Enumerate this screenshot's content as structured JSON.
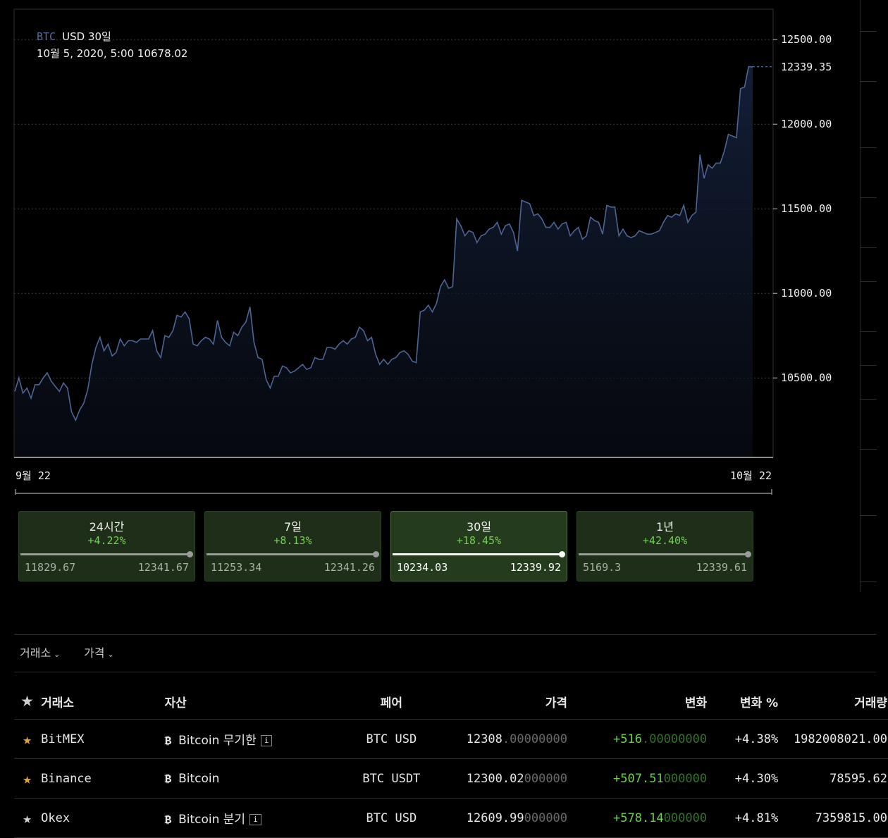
{
  "legend": {
    "symbol": "BTC",
    "pair_rest": "USD 30일",
    "tooltip": "10월 5, 2020, 5:00 10678.02"
  },
  "chart_data": {
    "type": "area",
    "x_labels": [
      "9월 22",
      "10월 22"
    ],
    "y_ticks": [
      "12500.00",
      "12000.00",
      "11500.00",
      "11000.00",
      "10500.00"
    ],
    "y_tick_values": [
      12500,
      12000,
      11500,
      11000,
      10500
    ],
    "ylim": [
      10030,
      12680
    ],
    "last_value_label": "12339.35",
    "last_value": 12339.35,
    "grid": true,
    "line_color": "#4d6494",
    "values": [
      10420,
      10500,
      10410,
      10440,
      10380,
      10460,
      10460,
      10500,
      10530,
      10480,
      10450,
      10420,
      10470,
      10440,
      10300,
      10250,
      10310,
      10350,
      10430,
      10580,
      10680,
      10740,
      10660,
      10700,
      10630,
      10650,
      10730,
      10690,
      10720,
      10720,
      10710,
      10730,
      10730,
      10730,
      10780,
      10660,
      10620,
      10750,
      10740,
      10780,
      10870,
      10860,
      10890,
      10850,
      10700,
      10690,
      10720,
      10740,
      10730,
      10700,
      10840,
      10740,
      10710,
      10690,
      10770,
      10750,
      10800,
      10830,
      10920,
      10710,
      10620,
      10610,
      10490,
      10440,
      10510,
      10510,
      10570,
      10560,
      10530,
      10540,
      10560,
      10580,
      10550,
      10560,
      10620,
      10610,
      10610,
      10680,
      10680,
      10670,
      10700,
      10720,
      10700,
      10730,
      10740,
      10800,
      10780,
      10720,
      10740,
      10640,
      10580,
      10610,
      10580,
      10610,
      10620,
      10650,
      10660,
      10640,
      10600,
      10590,
      10890,
      10900,
      10930,
      10890,
      10940,
      11040,
      11080,
      11030,
      11040,
      11440,
      11400,
      11340,
      11370,
      11360,
      11300,
      11340,
      11350,
      11380,
      11390,
      11420,
      11350,
      11400,
      11410,
      11360,
      11250,
      11550,
      11540,
      11530,
      11460,
      11470,
      11440,
      11390,
      11390,
      11420,
      11380,
      11410,
      11420,
      11340,
      11370,
      11390,
      11320,
      11340,
      11450,
      11430,
      11420,
      11350,
      11520,
      11510,
      11510,
      11340,
      11380,
      11340,
      11330,
      11340,
      11370,
      11360,
      11350,
      11350,
      11360,
      11370,
      11420,
      11460,
      11450,
      11470,
      11460,
      11520,
      11420,
      11460,
      11480,
      11820,
      11680,
      11760,
      11740,
      11770,
      11770,
      11840,
      11940,
      11930,
      11920,
      12210,
      12220,
      12340,
      12339.35
    ]
  },
  "ranges": [
    {
      "label": "24시간",
      "pct": "+4.22%",
      "low": "11829.67",
      "high": "12341.67",
      "active": false
    },
    {
      "label": "7일",
      "pct": "+8.13%",
      "low": "11253.34",
      "high": "12341.26",
      "active": false
    },
    {
      "label": "30일",
      "pct": "+18.45%",
      "low": "10234.03",
      "high": "12339.92",
      "active": true
    },
    {
      "label": "1년",
      "pct": "+42.40%",
      "low": "5169.3",
      "high": "12339.61",
      "active": false
    }
  ],
  "filters": {
    "exchange": "거래소",
    "price": "가격"
  },
  "table": {
    "headers": {
      "exchange": "거래소",
      "asset": "자산",
      "pair": "페어",
      "price": "가격",
      "change": "변화",
      "change_pct": "변화 %",
      "volume": "거래량"
    },
    "rows": [
      {
        "starred": true,
        "exchange": "BitMEX",
        "asset": "Bitcoin 무기한",
        "info": "i",
        "pair": "BTC USD",
        "price_main": "12308",
        "price_dim": ".00000000",
        "change_main": "+516",
        "change_dim": ".00000000",
        "change_pct": "+4.38%",
        "volume": "1982008021.00"
      },
      {
        "starred": true,
        "exchange": "Binance",
        "asset": "Bitcoin",
        "info": "",
        "pair": "BTC USDT",
        "price_main": "12300.02",
        "price_dim": "000000",
        "change_main": "+507.51",
        "change_dim": "000000",
        "change_pct": "+4.30%",
        "volume": "78595.62"
      },
      {
        "starred": false,
        "exchange": "Okex",
        "asset": "Bitcoin 분기",
        "info": "i",
        "pair": "BTC USD",
        "price_main": "12609.99",
        "price_dim": "000000",
        "change_main": "+578.14",
        "change_dim": "000000",
        "change_pct": "+4.81%",
        "volume": "7359815.00"
      }
    ]
  }
}
